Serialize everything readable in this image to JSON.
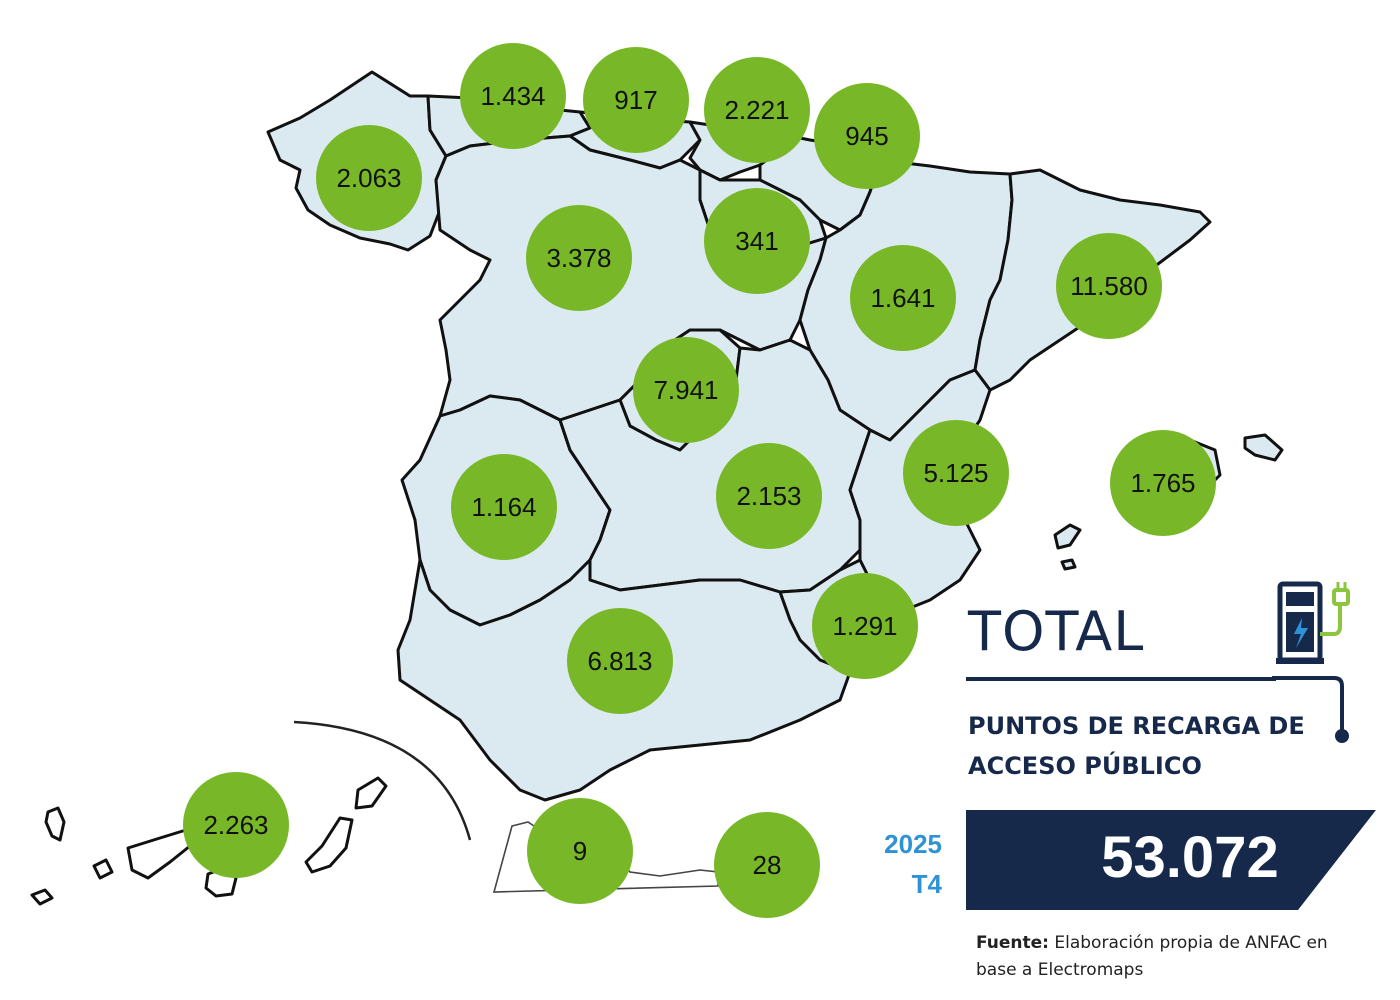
{
  "regions": [
    {
      "name_key": "galicia",
      "value": "2.063"
    },
    {
      "name_key": "asturias",
      "value": "1.434"
    },
    {
      "name_key": "cantabria",
      "value": "917"
    },
    {
      "name_key": "pais-vasco",
      "value": "2.221"
    },
    {
      "name_key": "navarra",
      "value": "945"
    },
    {
      "name_key": "la-rioja",
      "value": "341"
    },
    {
      "name_key": "castilla-y-leon",
      "value": "3.378"
    },
    {
      "name_key": "aragon",
      "value": "1.641"
    },
    {
      "name_key": "cataluna",
      "value": "11.580"
    },
    {
      "name_key": "madrid",
      "value": "7.941"
    },
    {
      "name_key": "extremadura",
      "value": "1.164"
    },
    {
      "name_key": "castilla-la-mancha",
      "value": "2.153"
    },
    {
      "name_key": "comunidad-valenciana",
      "value": "5.125"
    },
    {
      "name_key": "baleares",
      "value": "1.765"
    },
    {
      "name_key": "murcia",
      "value": "1.291"
    },
    {
      "name_key": "andalucia",
      "value": "6.813"
    },
    {
      "name_key": "canarias",
      "value": "2.263"
    },
    {
      "name_key": "ceuta",
      "value": "9"
    },
    {
      "name_key": "melilla",
      "value": "28"
    }
  ],
  "summary": {
    "title": "TOTAL",
    "subtitle_line1": "PUNTOS DE RECARGA DE",
    "subtitle_line2": "ACCESO PÚBLICO",
    "year": "2025",
    "quarter": "T4",
    "total": "53.072"
  },
  "source": {
    "label": "Fuente:",
    "text": "Elaboración propia de ANFAC en base a Electromaps"
  },
  "icons": [
    "ev-charger-icon"
  ],
  "colors": {
    "bubble": "#78b828",
    "land": "#dbeaf1",
    "navy": "#17294b",
    "accent_blue": "#2e93d6",
    "plug_green": "#8cc63f"
  }
}
